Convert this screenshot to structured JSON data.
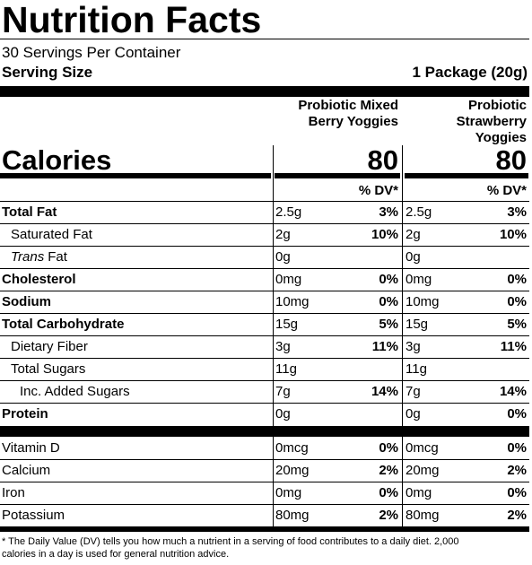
{
  "header": {
    "title": "Nutrition Facts",
    "servings_per_container": "30 Servings Per Container",
    "serving_size_label": "Serving Size",
    "serving_size_value": "1 Package (20g)"
  },
  "calories_label": "Calories",
  "dv_header": "% DV*",
  "products": [
    {
      "name_lines": [
        "Probiotic Mixed",
        "Berry Yoggies"
      ],
      "calories": 80
    },
    {
      "name_lines": [
        "Probiotic",
        "Strawberry",
        "Yoggies"
      ],
      "calories": 80
    }
  ],
  "nutrients": [
    {
      "name": "Total Fat",
      "level": 0,
      "bold": true,
      "amounts": [
        "2.5g",
        "2.5g"
      ],
      "dv": [
        "3%",
        "3%"
      ]
    },
    {
      "name": "Saturated Fat",
      "level": 1,
      "bold": false,
      "amounts": [
        "2g",
        "2g"
      ],
      "dv": [
        "10%",
        "10%"
      ]
    },
    {
      "name_italic": "Trans",
      "name": "Fat",
      "level": 1,
      "bold": false,
      "amounts": [
        "0g",
        "0g"
      ],
      "dv": [
        null,
        null
      ]
    },
    {
      "name": "Cholesterol",
      "level": 0,
      "bold": true,
      "amounts": [
        "0mg",
        "0mg"
      ],
      "dv": [
        "0%",
        "0%"
      ]
    },
    {
      "name": "Sodium",
      "level": 0,
      "bold": true,
      "amounts": [
        "10mg",
        "10mg"
      ],
      "dv": [
        "0%",
        "0%"
      ]
    },
    {
      "name": "Total Carbohydrate",
      "level": 0,
      "bold": true,
      "amounts": [
        "15g",
        "15g"
      ],
      "dv": [
        "5%",
        "5%"
      ]
    },
    {
      "name": "Dietary Fiber",
      "level": 1,
      "bold": false,
      "amounts": [
        "3g",
        "3g"
      ],
      "dv": [
        "11%",
        "11%"
      ]
    },
    {
      "name": "Total Sugars",
      "level": 1,
      "bold": false,
      "amounts": [
        "11g",
        "11g"
      ],
      "dv": [
        null,
        null
      ]
    },
    {
      "name": "Inc. Added Sugars",
      "level": 2,
      "bold": false,
      "amounts": [
        "7g",
        "7g"
      ],
      "dv": [
        "14%",
        "14%"
      ]
    },
    {
      "name": "Protein",
      "level": 0,
      "bold": true,
      "amounts": [
        "0g",
        "0g"
      ],
      "dv": [
        null,
        "0%"
      ]
    }
  ],
  "vitamins": [
    {
      "name": "Vitamin D",
      "level": 0,
      "bold": false,
      "amounts": [
        "0mcg",
        "0mcg"
      ],
      "dv": [
        "0%",
        "0%"
      ]
    },
    {
      "name": "Calcium",
      "level": 0,
      "bold": false,
      "amounts": [
        "20mg",
        "20mg"
      ],
      "dv": [
        "2%",
        "2%"
      ]
    },
    {
      "name": "Iron",
      "level": 0,
      "bold": false,
      "amounts": [
        "0mg",
        "0mg"
      ],
      "dv": [
        "0%",
        "0%"
      ]
    },
    {
      "name": "Potassium",
      "level": 0,
      "bold": false,
      "amounts": [
        "80mg",
        "80mg"
      ],
      "dv": [
        "2%",
        "2%"
      ]
    }
  ],
  "footnote_lines": [
    "* The Daily Value (DV) tells you how much a nutrient in a serving of food contributes to a daily diet. 2,000",
    "calories in a day is used for general nutrition advice."
  ]
}
